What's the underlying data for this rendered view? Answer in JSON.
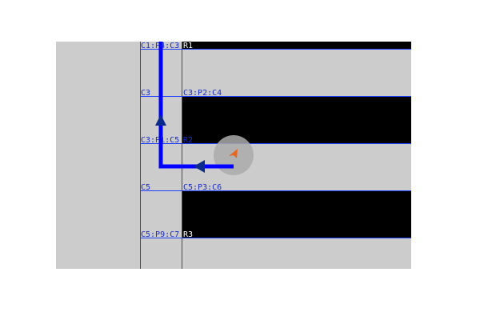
{
  "view": {
    "background": "#ffffff",
    "floor_color": "#cccccc",
    "obstacle_color": "#000000",
    "grid_color": "#1f3fff",
    "path_color": "#0000ff",
    "agent_halo_color": "#aaaaaa",
    "agent_color": "#e8661e",
    "label_color": "#1a2cc8"
  },
  "labels": {
    "c1_p4_c3": "C1:P4:C3",
    "r1": "R1",
    "c3": "C3",
    "c3_p2_c4": "C3:P2:C4",
    "c3_p1_c5": "C3:P1:C5",
    "r2": "R2",
    "c5": "C5",
    "c5_p3_c6": "C5:P3:C6",
    "c5_p9_c7": "C5:P9:C7",
    "r3": "R3"
  },
  "icons": {
    "path": "path-line",
    "path_arrows": "arrow-icon",
    "agent": "robot-agent-icon"
  }
}
